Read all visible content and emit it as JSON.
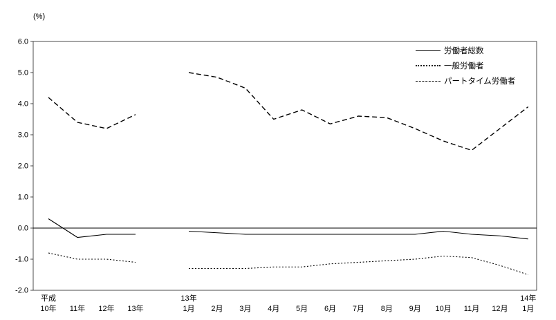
{
  "page": {
    "background": "#ffffff",
    "text_color": "#000000"
  },
  "chart_data": {
    "type": "line",
    "title": "",
    "unit_label": "(%)",
    "ylim": [
      -2.0,
      6.0
    ],
    "ytick_interval": 1.0,
    "ytick_labels": [
      "6.0",
      "5.0",
      "4.0",
      "3.0",
      "2.0",
      "1.0",
      "0.0",
      "-1.0",
      "-2.0"
    ],
    "grid": "off",
    "line_color": "#000000",
    "legend_position": "top-right-inside",
    "x_groups": [
      {
        "name": "annual",
        "labels": [
          {
            "top": "平成",
            "bottom": "10年"
          },
          {
            "top": "",
            "bottom": "11年"
          },
          {
            "top": "",
            "bottom": "12年"
          },
          {
            "top": "",
            "bottom": "13年"
          }
        ]
      },
      {
        "name": "monthly",
        "labels": [
          {
            "top": "13年",
            "bottom": "1月"
          },
          {
            "top": "",
            "bottom": "2月"
          },
          {
            "top": "",
            "bottom": "3月"
          },
          {
            "top": "",
            "bottom": "4月"
          },
          {
            "top": "",
            "bottom": "5月"
          },
          {
            "top": "",
            "bottom": "6月"
          },
          {
            "top": "",
            "bottom": "7月"
          },
          {
            "top": "",
            "bottom": "8月"
          },
          {
            "top": "",
            "bottom": "9月"
          },
          {
            "top": "",
            "bottom": "10月"
          },
          {
            "top": "",
            "bottom": "11月"
          },
          {
            "top": "",
            "bottom": "12月"
          },
          {
            "top": "14年",
            "bottom": "1月"
          }
        ]
      }
    ],
    "series": [
      {
        "name": "労働者総数",
        "style": "solid",
        "annual": [
          0.3,
          -0.3,
          -0.2,
          -0.2
        ],
        "monthly": [
          -0.1,
          -0.15,
          -0.2,
          -0.2,
          -0.2,
          -0.2,
          -0.2,
          -0.2,
          -0.2,
          -0.1,
          -0.2,
          -0.25,
          -0.35
        ]
      },
      {
        "name": "一般労働者",
        "style": "dotted",
        "annual": [
          -0.8,
          -1.0,
          -1.0,
          -1.1
        ],
        "monthly": [
          -1.3,
          -1.3,
          -1.3,
          -1.25,
          -1.25,
          -1.15,
          -1.1,
          -1.05,
          -1.0,
          -0.9,
          -0.95,
          -1.2,
          -1.5
        ]
      },
      {
        "name": "パートタイム労働者",
        "style": "dashed",
        "annual": [
          4.2,
          3.4,
          3.2,
          3.65
        ],
        "monthly": [
          5.0,
          4.85,
          4.5,
          3.5,
          3.8,
          3.35,
          3.6,
          3.55,
          3.2,
          2.8,
          2.5,
          3.2,
          3.9
        ]
      }
    ]
  }
}
